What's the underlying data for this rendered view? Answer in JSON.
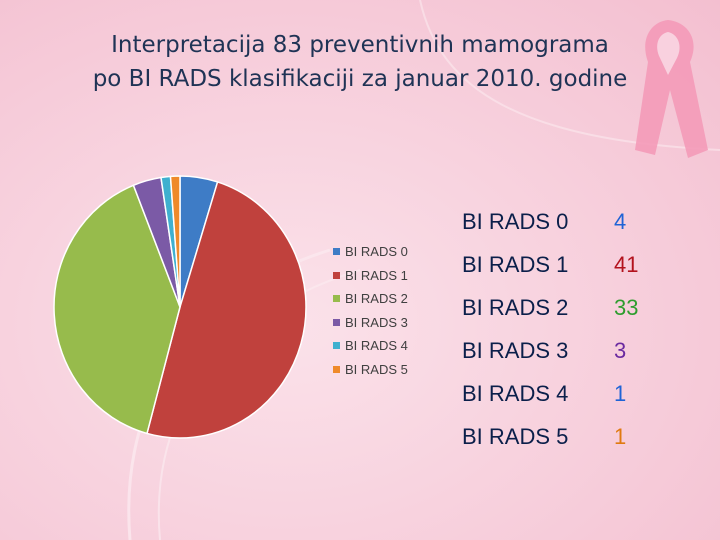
{
  "title_lines": [
    "Interpretacija 83 preventivnih mamograma",
    "po BI RADS klasifikaciji za januar 2010. godine"
  ],
  "chart_data": {
    "type": "pie",
    "title": "Interpretacija 83 preventivnih mamograma po BI RADS klasifikaciji za januar 2010. godine",
    "categories": [
      "BI RADS 0",
      "BI RADS 1",
      "BI RADS 2",
      "BI RADS 3",
      "BI RADS 4",
      "BI RADS 5"
    ],
    "values": [
      4,
      41,
      33,
      3,
      1,
      1
    ],
    "colors": [
      "#3e7cc6",
      "#c0413d",
      "#97bb4c",
      "#7b5aa6",
      "#3fb0cf",
      "#ef8a2a"
    ],
    "legend_position": "right"
  },
  "table": {
    "rows": [
      {
        "label": "BI RADS 0",
        "value": "4",
        "color": "#1f63d6"
      },
      {
        "label": "BI RADS 1",
        "value": "41",
        "color": "#b3121d"
      },
      {
        "label": "BI RADS 2",
        "value": "33",
        "color": "#2e9d2e"
      },
      {
        "label": "BI RADS 3",
        "value": "3",
        "color": "#6b2aa0"
      },
      {
        "label": "BI RADS 4",
        "value": "1",
        "color": "#1f63d6"
      },
      {
        "label": "BI RADS 5",
        "value": "1",
        "color": "#e07a10"
      }
    ]
  }
}
